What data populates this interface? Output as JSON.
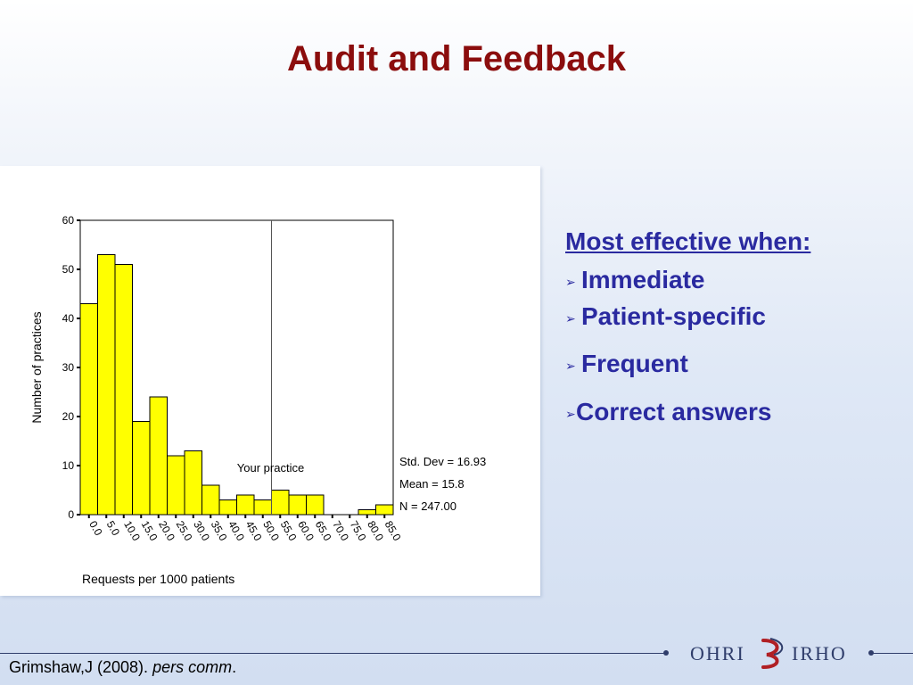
{
  "slide": {
    "title": "Audit and Feedback",
    "citation_prefix": "Grimshaw,J (2008). ",
    "citation_italic": "pers comm",
    "citation_suffix": "."
  },
  "bullets": {
    "heading": "Most effective when:",
    "items": [
      "Immediate",
      "Patient-specific",
      "Frequent",
      "Correct answers"
    ],
    "marker": "➢"
  },
  "logo": {
    "left_text": "OHRI",
    "right_text": "IRHO",
    "colors": {
      "navy": "#2f3d6b",
      "red": "#b01f24"
    }
  },
  "chart_data": {
    "type": "bar",
    "categories": [
      "0.0",
      "5.0",
      "10.0",
      "15.0",
      "20.0",
      "25.0",
      "30.0",
      "35.0",
      "40.0",
      "45.0",
      "50.0",
      "55.0",
      "60.0",
      "65.0",
      "70.0",
      "75.0",
      "80.0",
      "85.0"
    ],
    "values": [
      43,
      53,
      51,
      19,
      24,
      12,
      13,
      6,
      3,
      4,
      3,
      5,
      4,
      4,
      0,
      0,
      1,
      2
    ],
    "xlabel": "Requests per 1000 patients",
    "ylabel": "Number of practices",
    "ylim": [
      0,
      60
    ],
    "yticks": [
      0,
      10,
      20,
      30,
      40,
      50,
      60
    ],
    "bar_color": "#ffff00",
    "reference_line": {
      "x": 55.0,
      "label": "Your practice"
    },
    "stats": [
      "Std. Dev = 16.93",
      "Mean = 15.8",
      "N = 247.00"
    ]
  }
}
